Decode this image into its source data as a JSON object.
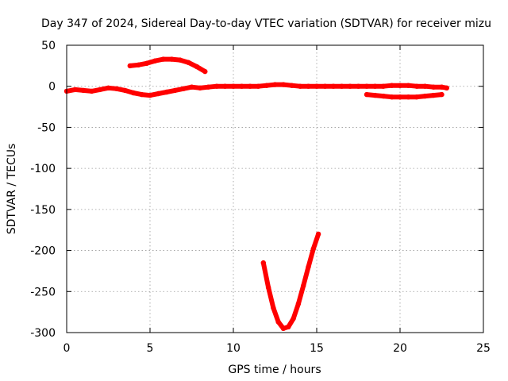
{
  "chart_data": {
    "type": "line",
    "title": "Day 347 of 2024, Sidereal Day-to-day VTEC variation (SDTVAR) for receiver mizu",
    "xlabel": "GPS time / hours",
    "ylabel": "SDTVAR / TECUs",
    "xlim": [
      0,
      25
    ],
    "ylim": [
      -300,
      50
    ],
    "xticks": [
      0,
      5,
      10,
      15,
      20,
      25
    ],
    "yticks": [
      50,
      0,
      -50,
      -100,
      -150,
      -200,
      -250,
      -300
    ],
    "xtick_labels": [
      "0",
      "5",
      "10",
      "15",
      "20",
      "25"
    ],
    "ytick_labels": [
      "50",
      "0",
      "-50",
      "-100",
      "-150",
      "-200",
      "-250",
      "-300"
    ],
    "grid": true,
    "color": "#ff0000",
    "series": [
      {
        "name": "arc-1",
        "x": [
          0,
          0.5,
          1,
          1.5,
          2,
          2.5,
          3,
          3.5,
          4,
          4.5,
          5,
          5.5,
          6,
          6.5,
          7,
          7.5,
          8,
          8.5,
          9,
          9.5,
          10,
          10.5,
          11,
          11.5,
          12,
          12.5,
          13,
          13.5,
          14,
          14.5,
          15,
          15.5,
          16,
          16.5,
          17,
          17.5,
          18,
          18.5,
          19,
          19.5,
          20,
          20.5,
          21,
          21.5,
          22,
          22.5,
          22.8
        ],
        "y": [
          -6,
          -4,
          -5,
          -6,
          -4,
          -2,
          -3,
          -5,
          -8,
          -10,
          -11,
          -9,
          -7,
          -5,
          -3,
          -1,
          -2,
          -1,
          0,
          0,
          0,
          0,
          0,
          0,
          1,
          2,
          2,
          1,
          0,
          0,
          0,
          0,
          0,
          0,
          0,
          0,
          0,
          0,
          0,
          1,
          1,
          1,
          0,
          0,
          -1,
          -1,
          -2
        ]
      },
      {
        "name": "arc-2",
        "x": [
          3.8,
          4.3,
          4.8,
          5.3,
          5.8,
          6.3,
          6.8,
          7.3,
          7.8,
          8.3
        ],
        "y": [
          25,
          26,
          28,
          31,
          33,
          33,
          32,
          29,
          24,
          18
        ]
      },
      {
        "name": "arc-3",
        "x": [
          18,
          18.5,
          19,
          19.5,
          20,
          20.5,
          21,
          21.5,
          22,
          22.5
        ],
        "y": [
          -10,
          -11,
          -12,
          -13,
          -13,
          -13,
          -13,
          -12,
          -11,
          -10
        ]
      },
      {
        "name": "arc-4",
        "x": [
          11.8,
          12.1,
          12.4,
          12.7,
          13.0,
          13.3,
          13.6,
          13.9,
          14.2,
          14.5,
          14.8,
          15.1
        ],
        "y": [
          -215,
          -245,
          -270,
          -287,
          -295,
          -293,
          -283,
          -265,
          -243,
          -220,
          -198,
          -180
        ]
      }
    ]
  }
}
